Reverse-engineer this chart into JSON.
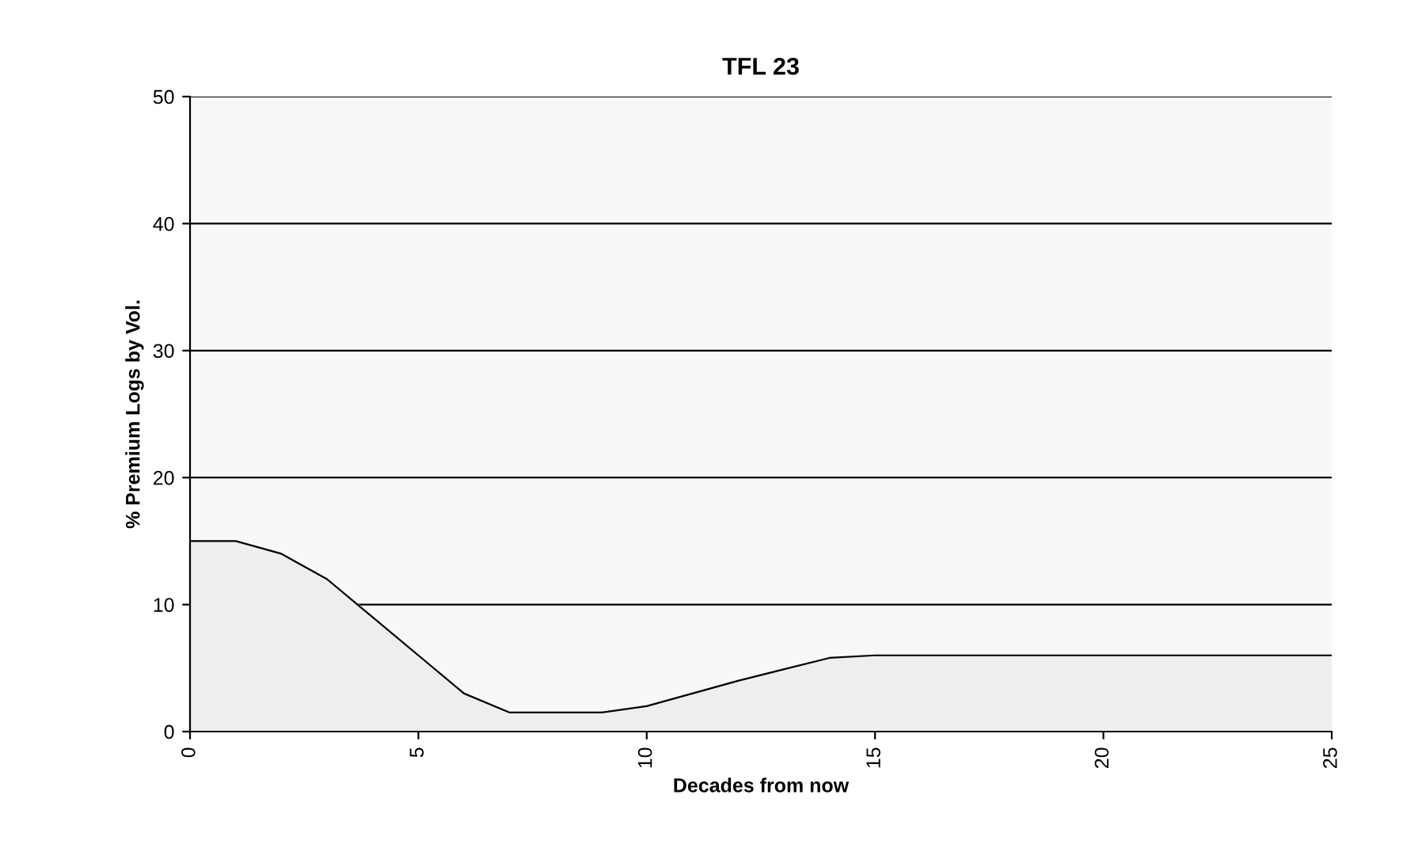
{
  "chart_data": {
    "type": "area",
    "title": "TFL 23",
    "xlabel": "Decades from now",
    "ylabel": "% Premium Logs by Vol.",
    "x": [
      0,
      1,
      2,
      3,
      4,
      5,
      6,
      7,
      8,
      9,
      10,
      11,
      12,
      13,
      14,
      15,
      16,
      17,
      18,
      19,
      20,
      21,
      22,
      23,
      24,
      25
    ],
    "series": [
      {
        "color": "#eeeeee",
        "values": [
          15,
          15,
          14,
          12,
          9,
          6,
          3,
          1.5,
          1.5,
          1.5,
          2,
          3,
          4,
          4.9,
          5.8,
          6,
          6,
          6,
          6,
          6,
          6,
          6,
          6,
          6,
          6,
          6
        ]
      }
    ],
    "xlim": [
      0,
      25
    ],
    "xticks": [
      0,
      5,
      10,
      15,
      20,
      25
    ],
    "ylim": [
      0,
      50
    ],
    "yticks": [
      0,
      10,
      20,
      30,
      40,
      50
    ],
    "grid": "y",
    "legend": false
  }
}
